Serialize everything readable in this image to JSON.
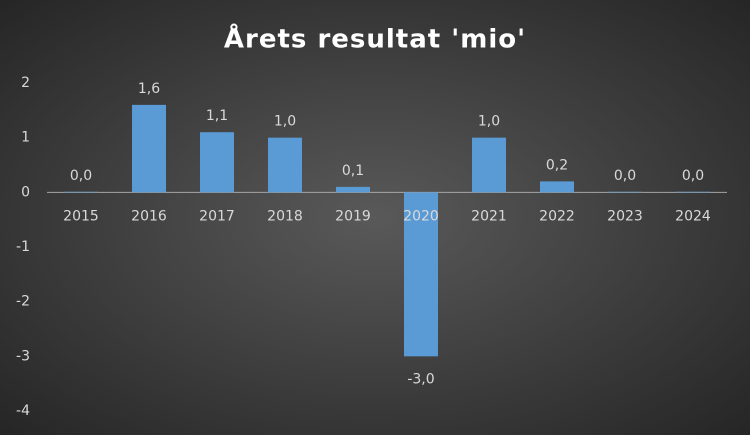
{
  "chart_data": {
    "type": "bar",
    "title": "Årets resultat 'mio'",
    "categories": [
      "2015",
      "2016",
      "2017",
      "2018",
      "2019",
      "2020",
      "2021",
      "2022",
      "2023",
      "2024"
    ],
    "values": [
      0.01,
      1.6,
      1.1,
      1.0,
      0.1,
      -3.0,
      1.0,
      0.2,
      0.01,
      0.01
    ],
    "value_labels": [
      "0,0",
      "1,6",
      "1,1",
      "1,0",
      "0,1",
      "-3,0",
      "1,0",
      "0,2",
      "0,0",
      "0,0"
    ],
    "color": "#5b9bd5",
    "ylim": [
      -4,
      2
    ],
    "yticks": [
      -4,
      -3,
      -2,
      -1,
      0,
      1,
      2
    ],
    "grid": false
  }
}
